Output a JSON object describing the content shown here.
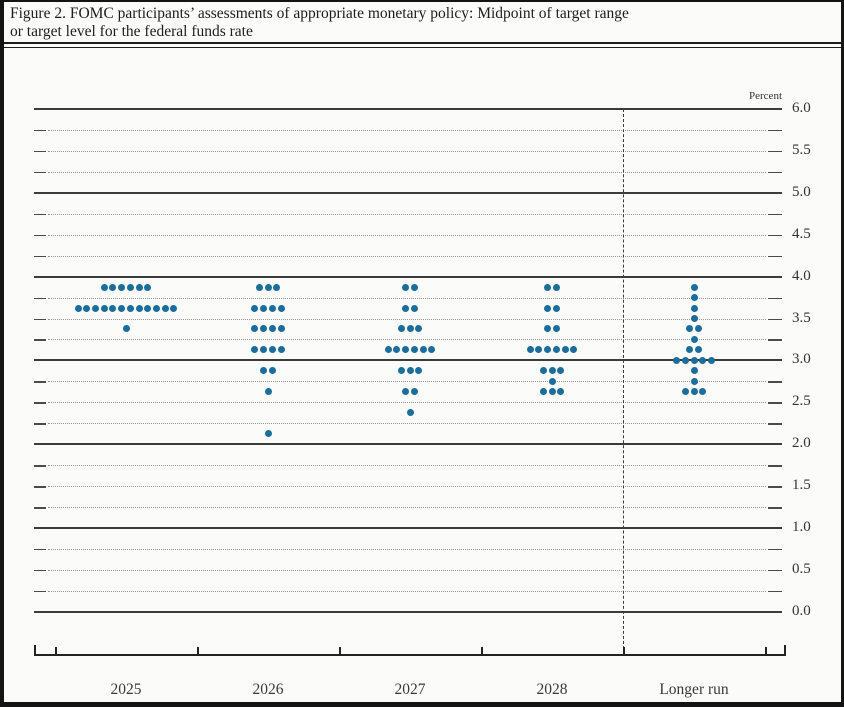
{
  "page": {
    "title_line1": "Figure 2. FOMC participants’ assessments of appropriate monetary policy: Midpoint of target range",
    "title_line2": "or target level for the federal funds rate"
  },
  "chart_data": {
    "type": "scatter",
    "title": "FOMC participants’ assessments of appropriate monetary policy: Midpoint of target range or target level for the federal funds rate",
    "unit_label": "Percent",
    "ylabel": "Percent",
    "xlabel": "",
    "ylim": [
      0.0,
      6.0
    ],
    "y_label_step": 0.5,
    "y_grid_step": 0.25,
    "grid": true,
    "y_tick_labels": [
      "6.0",
      "5.5",
      "5.0",
      "4.5",
      "4.0",
      "3.5",
      "3.0",
      "2.5",
      "2.0",
      "1.5",
      "1.0",
      "0.5",
      "0.0"
    ],
    "categories": [
      "2025",
      "2026",
      "2027",
      "2028",
      "Longer run"
    ],
    "separator_before_category": "Longer run",
    "dot_color": "#1b6d9b",
    "series": [
      {
        "category": "2025",
        "dots": [
          {
            "rate": 3.875,
            "count": 6
          },
          {
            "rate": 3.625,
            "count": 12
          },
          {
            "rate": 3.375,
            "count": 1
          }
        ]
      },
      {
        "category": "2026",
        "dots": [
          {
            "rate": 3.875,
            "count": 3
          },
          {
            "rate": 3.625,
            "count": 4
          },
          {
            "rate": 3.375,
            "count": 4
          },
          {
            "rate": 3.125,
            "count": 4
          },
          {
            "rate": 2.875,
            "count": 2
          },
          {
            "rate": 2.625,
            "count": 1
          },
          {
            "rate": 2.125,
            "count": 1
          }
        ]
      },
      {
        "category": "2027",
        "dots": [
          {
            "rate": 3.875,
            "count": 2
          },
          {
            "rate": 3.625,
            "count": 2
          },
          {
            "rate": 3.375,
            "count": 3
          },
          {
            "rate": 3.125,
            "count": 6
          },
          {
            "rate": 2.875,
            "count": 3
          },
          {
            "rate": 2.625,
            "count": 2
          },
          {
            "rate": 2.375,
            "count": 1
          }
        ]
      },
      {
        "category": "2028",
        "dots": [
          {
            "rate": 3.875,
            "count": 2
          },
          {
            "rate": 3.625,
            "count": 2
          },
          {
            "rate": 3.375,
            "count": 2
          },
          {
            "rate": 3.125,
            "count": 6
          },
          {
            "rate": 2.875,
            "count": 3
          },
          {
            "rate": 2.75,
            "count": 1
          },
          {
            "rate": 2.625,
            "count": 3
          }
        ]
      },
      {
        "category": "Longer run",
        "dots": [
          {
            "rate": 3.875,
            "count": 1
          },
          {
            "rate": 3.75,
            "count": 1
          },
          {
            "rate": 3.625,
            "count": 1
          },
          {
            "rate": 3.5,
            "count": 1
          },
          {
            "rate": 3.375,
            "count": 2
          },
          {
            "rate": 3.25,
            "count": 1
          },
          {
            "rate": 3.125,
            "count": 2
          },
          {
            "rate": 3.0,
            "count": 5
          },
          {
            "rate": 2.875,
            "count": 1
          },
          {
            "rate": 2.75,
            "count": 1
          },
          {
            "rate": 2.625,
            "count": 3
          }
        ]
      }
    ]
  }
}
